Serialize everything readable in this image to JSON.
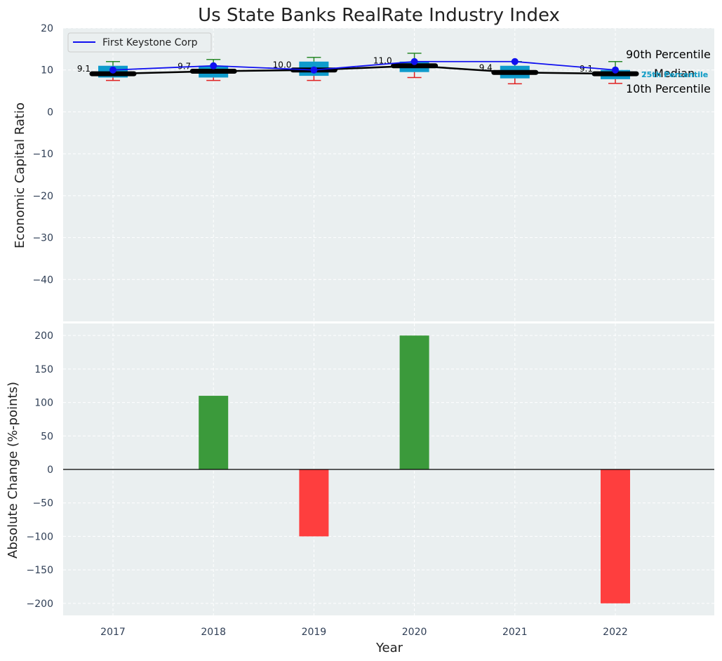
{
  "chart_data": [
    {
      "type": "box-line",
      "title": "Us State Banks RealRate Industry Index",
      "ylabel": "Economic Capital Ratio",
      "ylim": [
        -50,
        20
      ],
      "yticks": [
        "20",
        "10",
        "0",
        "−10",
        "−20",
        "−30",
        "−40"
      ],
      "categories": [
        "2017",
        "2018",
        "2019",
        "2020",
        "2021",
        "2022"
      ],
      "boxes": [
        {
          "p10": 7.5,
          "p25": 8.2,
          "median": 9.1,
          "p75": 11.0,
          "p90": 12.0,
          "label": "9.1"
        },
        {
          "p10": 7.5,
          "p25": 8.2,
          "median": 9.7,
          "p75": 11.0,
          "p90": 12.5,
          "label": "9.7"
        },
        {
          "p10": 7.5,
          "p25": 8.6,
          "median": 10.0,
          "p75": 12.0,
          "p90": 13.0,
          "label": "10.0"
        },
        {
          "p10": 8.2,
          "p25": 9.5,
          "median": 11.0,
          "p75": 12.0,
          "p90": 14.0,
          "label": "11.0"
        },
        {
          "p10": 6.7,
          "p25": 8.0,
          "median": 9.4,
          "p75": 11.0,
          "p90": 12.0,
          "label": "9.4"
        },
        {
          "p10": 6.8,
          "p25": 7.8,
          "median": 9.1,
          "p75": 10.0,
          "p90": 12.0,
          "label": "9.1"
        }
      ],
      "series": [
        {
          "name": "First Keystone Corp",
          "values": [
            10.0,
            11.0,
            10.0,
            12.0,
            12.0,
            10.0
          ]
        }
      ],
      "annotations": {
        "p90": "90th Percentile",
        "median": "Median",
        "p10": "10th Percentile",
        "p25": "25th Percentile",
        "p75": "75th Percentile"
      },
      "legend": {
        "position": "top-left",
        "entries": [
          "First Keystone Corp"
        ]
      }
    },
    {
      "type": "bar",
      "ylabel": "Absolute Change (%-points)",
      "xlabel": "Year",
      "ylim": [
        -218,
        218
      ],
      "yticks": [
        "200",
        "150",
        "100",
        "50",
        "0",
        "−50",
        "−100",
        "−150",
        "−200"
      ],
      "categories": [
        "2017",
        "2018",
        "2019",
        "2020",
        "2021",
        "2022"
      ],
      "values": [
        0,
        110,
        -100,
        200,
        0,
        -200
      ]
    }
  ],
  "colors": {
    "background": "#ffffff",
    "plot_bg": "#eaeff0",
    "grid": "#ffffff",
    "box": "#0e9bcc",
    "median": "#000000",
    "series": "#1010f0",
    "p90_whisker": "#2a8a2a",
    "p10_whisker": "#e02020",
    "positive": "#3b9a3b",
    "negative": "#fe3e3e",
    "q_label": "#1ba0c8"
  }
}
